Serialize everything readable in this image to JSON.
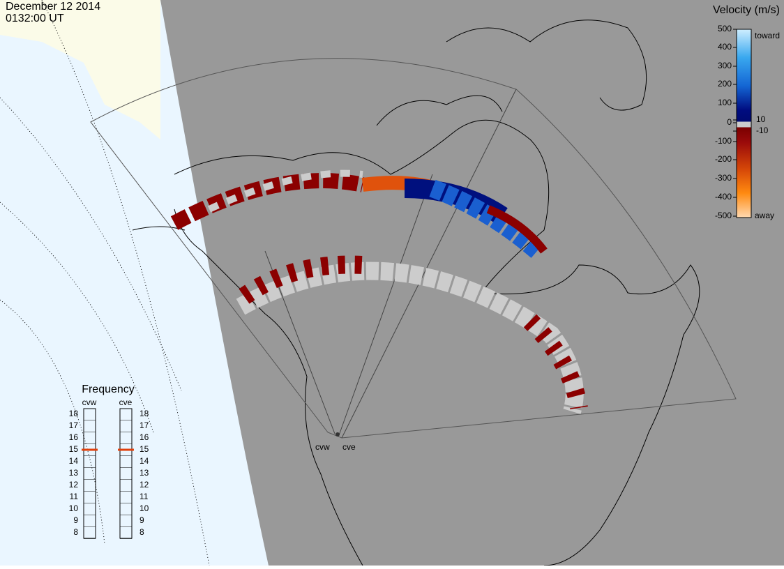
{
  "header": {
    "date": "December 12 2014",
    "time": "0132:00 UT"
  },
  "colorbar": {
    "title": "Velocity (m/s)",
    "ticks": [
      500,
      400,
      300,
      200,
      100,
      10,
      0,
      -10,
      -100,
      -200,
      -300,
      -400,
      -500
    ],
    "toward": "toward",
    "away": "away"
  },
  "frequency": {
    "title": "Frequency",
    "ticks": [
      18,
      17,
      16,
      15,
      14,
      13,
      12,
      11,
      10,
      9,
      8
    ],
    "radars": [
      {
        "name": "cvw",
        "value": 15
      },
      {
        "name": "cve",
        "value": 15
      }
    ]
  },
  "stations": [
    "cvw",
    "cve"
  ]
}
